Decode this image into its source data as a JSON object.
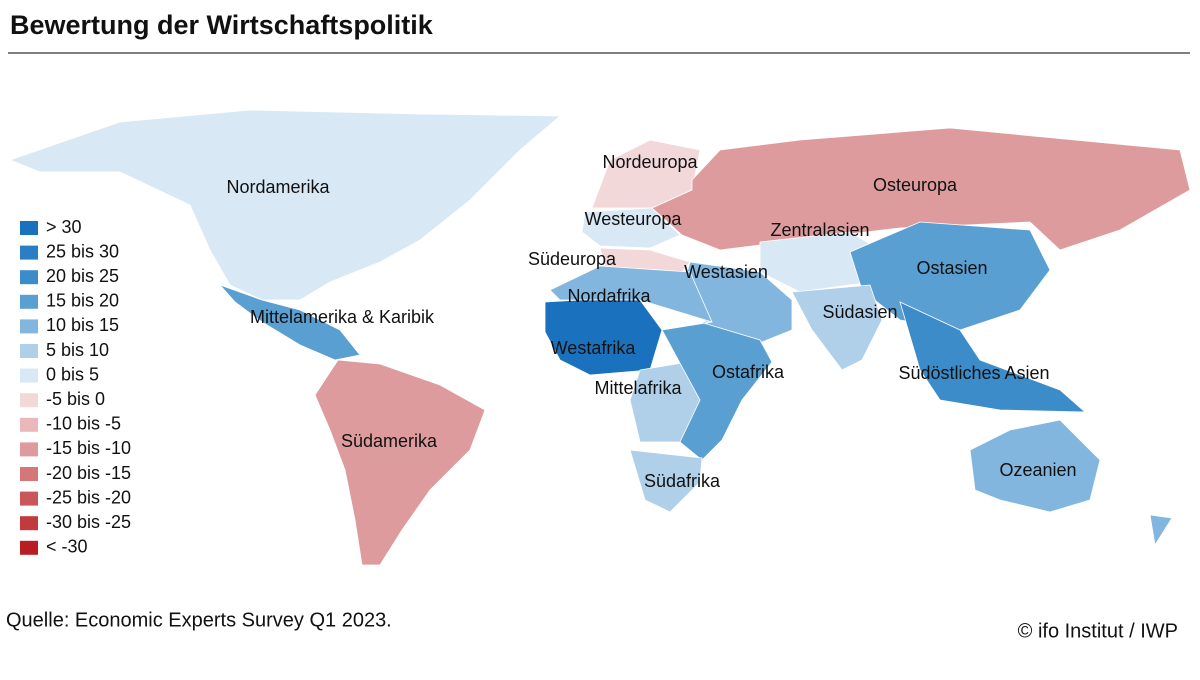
{
  "title": "Bewertung der Wirtschaftspolitik",
  "legend": [
    {
      "label": "> 30",
      "color": "#1a72be"
    },
    {
      "label": "25 bis 30",
      "color": "#2a7fc4"
    },
    {
      "label": "20 bis 25",
      "color": "#3c8cc9"
    },
    {
      "label": "15 bis 20",
      "color": "#5a9fd2"
    },
    {
      "label": "10 bis 15",
      "color": "#82b6df"
    },
    {
      "label": "5 bis 10",
      "color": "#b0d0ea"
    },
    {
      "label": "0 bis 5",
      "color": "#d8e8f4"
    },
    {
      "label": "-5 bis 0",
      "color": "#f3d8da"
    },
    {
      "label": "-10 bis -5",
      "color": "#eab8bb"
    },
    {
      "label": "-15 bis -10",
      "color": "#de9b9d"
    },
    {
      "label": "-20 bis -15",
      "color": "#d37778"
    },
    {
      "label": "-25 bis -20",
      "color": "#c95658"
    },
    {
      "label": "-30 bis -25",
      "color": "#c13a3c"
    },
    {
      "label": "< -30",
      "color": "#b81d22"
    }
  ],
  "regions": [
    {
      "label": "Nordamerika",
      "color": "#d8e8f4"
    },
    {
      "label": "Mittelamerika & Karibik",
      "color": "#5a9fd2"
    },
    {
      "label": "Südamerika",
      "color": "#de9b9d"
    },
    {
      "label": "Nordeuropa",
      "color": "#f3d8da"
    },
    {
      "label": "Westeuropa",
      "color": "#d8e8f4"
    },
    {
      "label": "Südeuropa",
      "color": "#f3d8da"
    },
    {
      "label": "Osteuropa",
      "color": "#de9b9d"
    },
    {
      "label": "Zentralasien",
      "color": "#d8e8f4"
    },
    {
      "label": "Westasien",
      "color": "#82b6df"
    },
    {
      "label": "Ostasien",
      "color": "#5a9fd2"
    },
    {
      "label": "Südasien",
      "color": "#b0d0ea"
    },
    {
      "label": "Südöstliches Asien",
      "color": "#3c8cc9"
    },
    {
      "label": "Nordafrika",
      "color": "#82b6df"
    },
    {
      "label": "Westafrika",
      "color": "#1a72be"
    },
    {
      "label": "Mittelafrika",
      "color": "#b0d0ea"
    },
    {
      "label": "Ostafrika",
      "color": "#5a9fd2"
    },
    {
      "label": "Südafrika",
      "color": "#b0d0ea"
    },
    {
      "label": "Ozeanien",
      "color": "#82b6df"
    }
  ],
  "source": "Quelle: Economic Experts Survey Q1 2023.",
  "credit": "© ifo Institut / IWP"
}
